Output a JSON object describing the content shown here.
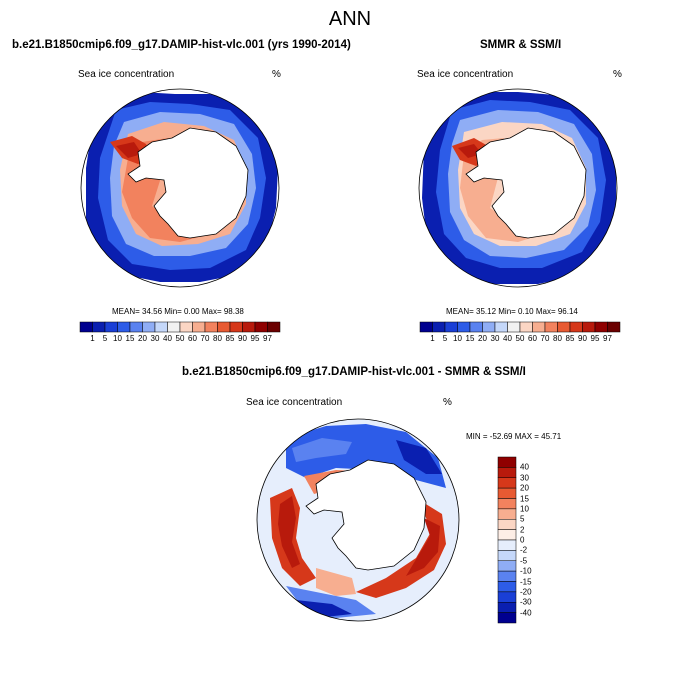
{
  "figure": {
    "season": "ANN"
  },
  "panels": {
    "model": {
      "title": "b.e21.B1850cmip6.f09_g17.DAMIP-hist-vlc.001 (yrs 1990-2014)",
      "variable": "Sea ice concentration",
      "units": "%",
      "stats": "MEAN=  34.56  Min=   0.00  Max=  98.38"
    },
    "obs": {
      "title": "SMMR & SSM/I",
      "variable": "Sea ice concentration",
      "units": "%",
      "stats": "MEAN=  35.12  Min=   0.10  Max=  96.14"
    },
    "diff": {
      "title": "b.e21.B1850cmip6.f09_g17.DAMIP-hist-vlc.001 - SMMR & SSM/I",
      "variable": "Sea ice concentration",
      "units": "%",
      "stats": "MIN = -52.69 MAX =  45.71"
    }
  },
  "colorbars": {
    "abs_labels": [
      "1",
      "5",
      "10",
      "15",
      "20",
      "30",
      "40",
      "50",
      "60",
      "70",
      "80",
      "85",
      "90",
      "95",
      "97"
    ],
    "abs_colors": [
      "#00008f",
      "#0a1fb0",
      "#1a3fd6",
      "#2d5ce8",
      "#5a82f0",
      "#8fadf5",
      "#c5d8fa",
      "#f2f2f2",
      "#fbd6c4",
      "#f7ae90",
      "#f2825e",
      "#e85a32",
      "#d6381a",
      "#b81a0c",
      "#8f0000",
      "#6a0000"
    ],
    "diff_labels": [
      "40",
      "30",
      "20",
      "15",
      "10",
      "5",
      "2",
      "0",
      "-2",
      "-5",
      "-10",
      "-15",
      "-20",
      "-30",
      "-40"
    ],
    "diff_colors": [
      "#8f0000",
      "#b81a0c",
      "#d6381a",
      "#e85a32",
      "#f2825e",
      "#f7ae90",
      "#fbd6c4",
      "#fdeee6",
      "#e6eefc",
      "#c5d8fa",
      "#8fadf5",
      "#5a82f0",
      "#2d5ce8",
      "#1a3fd6",
      "#0a1fb0",
      "#00008f"
    ]
  }
}
